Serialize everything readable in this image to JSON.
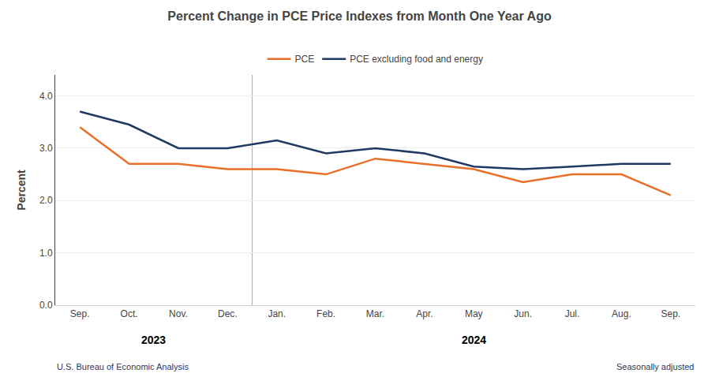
{
  "chart_data": {
    "type": "line",
    "title": "Percent Change in PCE Price Indexes from Month One Year Ago",
    "y_label": "Percent",
    "categories": [
      "Sep.",
      "Oct.",
      "Nov.",
      "Dec.",
      "Jan.",
      "Feb.",
      "Mar.",
      "Apr.",
      "May",
      "Jun.",
      "Jul.",
      "Aug.",
      "Sep."
    ],
    "series": [
      {
        "name": "PCE",
        "color": "#E8702A",
        "values": [
          3.4,
          2.7,
          2.7,
          2.6,
          2.6,
          2.5,
          2.8,
          2.7,
          2.6,
          2.35,
          2.5,
          2.5,
          2.1
        ]
      },
      {
        "name": "PCE excluding food and energy",
        "color": "#1F3864",
        "values": [
          3.7,
          3.45,
          3.0,
          3.0,
          3.15,
          2.9,
          3.0,
          2.9,
          2.65,
          2.6,
          2.65,
          2.7,
          2.7
        ]
      }
    ],
    "ylim": [
      0.0,
      4.4
    ],
    "yticks": [
      {
        "value": 0.0,
        "label": "0.0"
      },
      {
        "value": 1.0,
        "label": "1.0"
      },
      {
        "value": 2.0,
        "label": "2.0"
      },
      {
        "value": 3.0,
        "label": "3.0"
      },
      {
        "value": 4.0,
        "label": "4.0"
      }
    ],
    "grid": true,
    "legend": "top",
    "annotations": [
      "2023",
      "2024",
      "U.S. Bureau of Economic Analysis",
      "Seasonally adjusted"
    ]
  }
}
